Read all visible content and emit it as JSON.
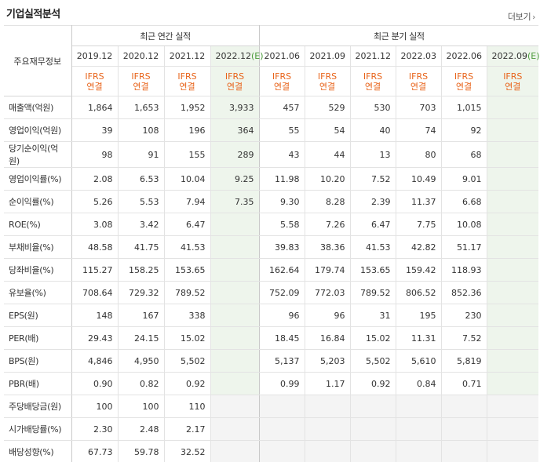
{
  "title": "기업실적분석",
  "more": {
    "label": "더보기",
    "icon": "chevron-right-icon"
  },
  "row_header": "주요재무정보",
  "groups": {
    "annual": "최근 연간 실적",
    "quarterly": "최근 분기 실적"
  },
  "annual_periods": [
    "2019.12",
    "2020.12",
    "2021.12",
    "2022.12(E)"
  ],
  "quarterly_periods": [
    "2021.06",
    "2021.09",
    "2021.12",
    "2022.03",
    "2022.06",
    "2022.09(E)"
  ],
  "basis_label": "IFRS",
  "basis_sub": "연결",
  "colors": {
    "accent": "#e8641b",
    "estimate_bg": "#eef5ec",
    "estimate_e": "#4a9a3a",
    "empty_bg": "#f4f4f4"
  },
  "rows": [
    {
      "label": "매출액(억원)",
      "annual": [
        "1,864",
        "1,653",
        "1,952",
        "3,933"
      ],
      "quarterly": [
        "457",
        "529",
        "530",
        "703",
        "1,015",
        ""
      ]
    },
    {
      "label": "영업이익(억원)",
      "annual": [
        "39",
        "108",
        "196",
        "364"
      ],
      "quarterly": [
        "55",
        "54",
        "40",
        "74",
        "92",
        ""
      ]
    },
    {
      "label": "당기순이익(억원)",
      "annual": [
        "98",
        "91",
        "155",
        "289"
      ],
      "quarterly": [
        "43",
        "44",
        "13",
        "80",
        "68",
        ""
      ]
    },
    {
      "label": "영업이익률(%)",
      "annual": [
        "2.08",
        "6.53",
        "10.04",
        "9.25"
      ],
      "quarterly": [
        "11.98",
        "10.20",
        "7.52",
        "10.49",
        "9.01",
        ""
      ]
    },
    {
      "label": "순이익률(%)",
      "annual": [
        "5.26",
        "5.53",
        "7.94",
        "7.35"
      ],
      "quarterly": [
        "9.30",
        "8.28",
        "2.39",
        "11.37",
        "6.68",
        ""
      ]
    },
    {
      "label": "ROE(%)",
      "annual": [
        "3.08",
        "3.42",
        "6.47",
        ""
      ],
      "quarterly": [
        "5.58",
        "7.26",
        "6.47",
        "7.75",
        "10.08",
        ""
      ]
    },
    {
      "label": "부채비율(%)",
      "annual": [
        "48.58",
        "41.75",
        "41.53",
        ""
      ],
      "quarterly": [
        "39.83",
        "38.36",
        "41.53",
        "42.82",
        "51.17",
        ""
      ]
    },
    {
      "label": "당좌비율(%)",
      "annual": [
        "115.27",
        "158.25",
        "153.65",
        ""
      ],
      "quarterly": [
        "162.64",
        "179.74",
        "153.65",
        "159.42",
        "118.93",
        ""
      ]
    },
    {
      "label": "유보율(%)",
      "annual": [
        "708.64",
        "729.32",
        "789.52",
        ""
      ],
      "quarterly": [
        "752.09",
        "772.03",
        "789.52",
        "806.52",
        "852.36",
        ""
      ]
    },
    {
      "label": "EPS(원)",
      "annual": [
        "148",
        "167",
        "338",
        ""
      ],
      "quarterly": [
        "96",
        "96",
        "31",
        "195",
        "230",
        ""
      ]
    },
    {
      "label": "PER(배)",
      "annual": [
        "29.43",
        "24.15",
        "15.02",
        ""
      ],
      "quarterly": [
        "18.45",
        "16.84",
        "15.02",
        "11.31",
        "7.52",
        ""
      ]
    },
    {
      "label": "BPS(원)",
      "annual": [
        "4,846",
        "4,950",
        "5,502",
        ""
      ],
      "quarterly": [
        "5,137",
        "5,203",
        "5,502",
        "5,610",
        "5,819",
        ""
      ]
    },
    {
      "label": "PBR(배)",
      "annual": [
        "0.90",
        "0.82",
        "0.92",
        ""
      ],
      "quarterly": [
        "0.99",
        "1.17",
        "0.92",
        "0.84",
        "0.71",
        ""
      ]
    },
    {
      "label": "주당배당금(원)",
      "annual": [
        "100",
        "100",
        "110",
        ""
      ],
      "quarterly": [
        "",
        "",
        "",
        "",
        "",
        ""
      ]
    },
    {
      "label": "시가배당률(%)",
      "annual": [
        "2.30",
        "2.48",
        "2.17",
        ""
      ],
      "quarterly": [
        "",
        "",
        "",
        "",
        "",
        ""
      ]
    },
    {
      "label": "배당성향(%)",
      "annual": [
        "67.73",
        "59.78",
        "32.52",
        ""
      ],
      "quarterly": [
        "",
        "",
        "",
        "",
        "",
        ""
      ]
    }
  ]
}
